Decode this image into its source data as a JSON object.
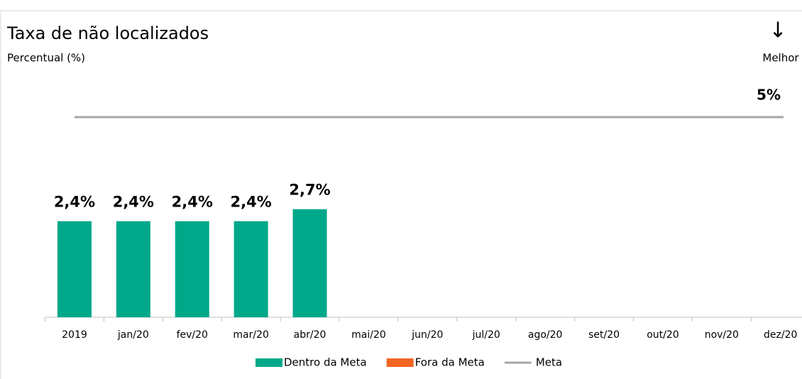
{
  "chart_data": {
    "type": "bar",
    "title": "Taxa de não localizados",
    "subtitle": "Percentual (%)",
    "indicator": {
      "arrow": "↓",
      "label": "Melhor"
    },
    "categories": [
      "2019",
      "jan/20",
      "fev/20",
      "mar/20",
      "abr/20",
      "mai/20",
      "jun/20",
      "jul/20",
      "ago/20",
      "set/20",
      "out/20",
      "nov/20",
      "dez/20"
    ],
    "series": [
      {
        "name": "Dentro da Meta",
        "color": "#00a88a",
        "values": [
          2.4,
          2.4,
          2.4,
          2.4,
          2.7,
          null,
          null,
          null,
          null,
          null,
          null,
          null,
          null
        ],
        "value_labels": [
          "2,4%",
          "2,4%",
          "2,4%",
          "2,4%",
          "2,7%",
          null,
          null,
          null,
          null,
          null,
          null,
          null,
          null
        ]
      },
      {
        "name": "Fora da Meta",
        "color": "#f26522",
        "values": [
          null,
          null,
          null,
          null,
          null,
          null,
          null,
          null,
          null,
          null,
          null,
          null,
          null
        ]
      }
    ],
    "target": {
      "name": "Meta",
      "value": 5,
      "label": "5%",
      "color": "#a6a6a6"
    },
    "ylim": [
      0,
      6
    ]
  }
}
